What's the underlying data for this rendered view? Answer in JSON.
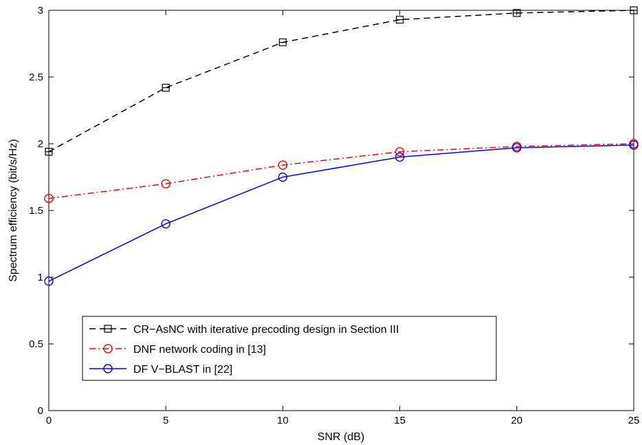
{
  "chart_data": {
    "type": "line",
    "xlabel": "SNR (dB)",
    "ylabel": "Spectrum efficiency (bit/s/Hz)",
    "xlim": [
      0,
      25
    ],
    "ylim": [
      0,
      3
    ],
    "xticks": [
      0,
      5,
      10,
      15,
      20,
      25
    ],
    "yticks": [
      0,
      0.5,
      1,
      1.5,
      2,
      2.5,
      3
    ],
    "grid": false,
    "legend_position": "bottom-left",
    "x": [
      0,
      5,
      10,
      15,
      20,
      25
    ],
    "series": [
      {
        "name": "CR−AsNC with iterative precoding design in Section III",
        "values": [
          1.94,
          2.42,
          2.76,
          2.93,
          2.98,
          3.0
        ],
        "color": "#000000",
        "line_style": "dashed",
        "marker": "square"
      },
      {
        "name": "DNF network coding in [13]",
        "values": [
          1.59,
          1.7,
          1.84,
          1.94,
          1.98,
          2.0
        ],
        "color": "#ff0000",
        "line_style": "dash-dot",
        "marker": "circle"
      },
      {
        "name": "DF V−BLAST in [22]",
        "values": [
          0.97,
          1.4,
          1.75,
          1.9,
          1.97,
          1.99
        ],
        "color": "#0000ff",
        "line_style": "solid",
        "marker": "circle"
      }
    ]
  }
}
